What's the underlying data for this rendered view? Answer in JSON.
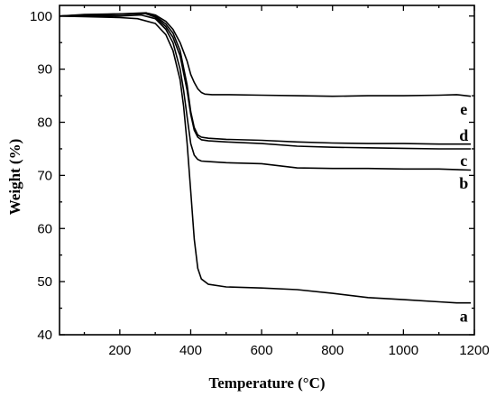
{
  "chart_data": {
    "type": "line",
    "title": "",
    "xlabel": "Temperature (°C)",
    "ylabel": "Weight (%)",
    "xlim": [
      30,
      1200
    ],
    "ylim": [
      40,
      102
    ],
    "xticks": [
      200,
      400,
      600,
      800,
      1000,
      1200
    ],
    "yticks": [
      40,
      50,
      60,
      70,
      80,
      90,
      100
    ],
    "grid": false,
    "legend": "none",
    "line_color": "#000000",
    "series": [
      {
        "name": "a",
        "x": [
          30,
          100,
          200,
          250,
          300,
          330,
          350,
          370,
          380,
          390,
          400,
          410,
          420,
          430,
          450,
          500,
          600,
          700,
          800,
          900,
          1000,
          1100,
          1150,
          1190
        ],
        "y": [
          100.0,
          99.9,
          99.7,
          99.5,
          98.6,
          96.5,
          93.5,
          88.0,
          83.0,
          76.0,
          67.0,
          58.0,
          52.5,
          50.5,
          49.5,
          49.0,
          48.8,
          48.5,
          47.8,
          47.0,
          46.6,
          46.2,
          46.0,
          46.0
        ]
      },
      {
        "name": "b",
        "x": [
          30,
          100,
          200,
          260,
          300,
          330,
          350,
          370,
          380,
          390,
          400,
          410,
          420,
          430,
          450,
          500,
          600,
          700,
          800,
          900,
          1000,
          1100,
          1190
        ],
        "y": [
          100.0,
          100.0,
          100.0,
          100.2,
          99.5,
          97.5,
          95.0,
          90.0,
          86.0,
          81.0,
          76.0,
          73.8,
          73.0,
          72.7,
          72.6,
          72.4,
          72.2,
          71.4,
          71.3,
          71.3,
          71.2,
          71.2,
          71.0
        ]
      },
      {
        "name": "c",
        "x": [
          30,
          100,
          200,
          270,
          300,
          330,
          350,
          370,
          390,
          400,
          410,
          420,
          430,
          450,
          500,
          600,
          700,
          800,
          900,
          1000,
          1100,
          1190
        ],
        "y": [
          100.0,
          100.2,
          100.3,
          100.5,
          99.8,
          98.0,
          96.0,
          92.5,
          86.0,
          81.5,
          78.5,
          77.2,
          76.7,
          76.5,
          76.3,
          76.0,
          75.5,
          75.3,
          75.2,
          75.1,
          75.0,
          75.0
        ]
      },
      {
        "name": "d",
        "x": [
          30,
          100,
          200,
          275,
          300,
          330,
          350,
          370,
          390,
          400,
          410,
          420,
          430,
          450,
          500,
          600,
          700,
          800,
          900,
          1000,
          1100,
          1190
        ],
        "y": [
          100.0,
          100.3,
          100.4,
          100.6,
          100.0,
          98.5,
          96.8,
          93.5,
          87.0,
          82.0,
          79.0,
          77.6,
          77.2,
          77.0,
          76.8,
          76.6,
          76.3,
          76.1,
          76.0,
          76.0,
          75.9,
          75.9
        ]
      },
      {
        "name": "e",
        "x": [
          30,
          100,
          200,
          280,
          300,
          330,
          350,
          370,
          390,
          400,
          410,
          420,
          430,
          440,
          460,
          500,
          600,
          700,
          800,
          900,
          1000,
          1100,
          1150,
          1190
        ],
        "y": [
          100.0,
          100.2,
          100.4,
          100.5,
          100.2,
          99.0,
          97.5,
          95.0,
          91.5,
          89.0,
          87.5,
          86.3,
          85.6,
          85.3,
          85.2,
          85.2,
          85.1,
          85.0,
          84.9,
          85.0,
          85.0,
          85.1,
          85.2,
          84.9
        ]
      }
    ],
    "series_labels": [
      {
        "text": "a",
        "x": 1170,
        "y": 43.5
      },
      {
        "text": "b",
        "x": 1170,
        "y": 68.5
      },
      {
        "text": "c",
        "x": 1170,
        "y": 72.8
      },
      {
        "text": "d",
        "x": 1170,
        "y": 77.5
      },
      {
        "text": "e",
        "x": 1170,
        "y": 82.5
      }
    ]
  }
}
